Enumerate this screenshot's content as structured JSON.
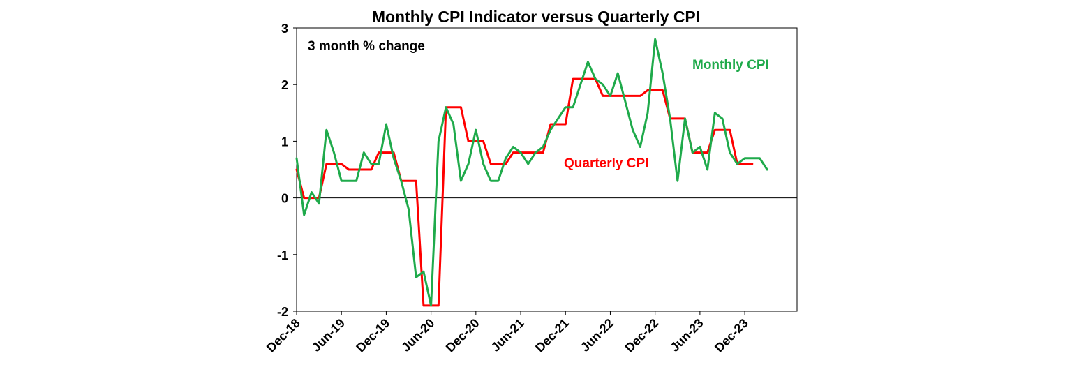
{
  "chart_data": {
    "type": "line",
    "title": "Monthly CPI Indicator versus Quarterly CPI",
    "annotation": "3 month % change",
    "x_ticks": [
      "Dec-18",
      "Jun-19",
      "Dec-19",
      "Jun-20",
      "Dec-20",
      "Jun-21",
      "Dec-21",
      "Jun-22",
      "Dec-22",
      "Jun-23",
      "Dec-23"
    ],
    "y_ticks": [
      "3",
      "2",
      "1",
      "0",
      "-1",
      "-2"
    ],
    "ylim": [
      -2,
      3
    ],
    "xlim": [
      "Dec-18",
      "Jul-24"
    ],
    "grid": false,
    "legend": "inline labels",
    "series": [
      {
        "name": "Monthly CPI",
        "color": "#1FAA4B",
        "points": [
          [
            "Dec-18",
            0.7
          ],
          [
            "Jan-19",
            -0.3
          ],
          [
            "Feb-19",
            0.1
          ],
          [
            "Mar-19",
            -0.1
          ],
          [
            "Apr-19",
            1.2
          ],
          [
            "May-19",
            0.8
          ],
          [
            "Jun-19",
            0.3
          ],
          [
            "Jul-19",
            0.3
          ],
          [
            "Aug-19",
            0.3
          ],
          [
            "Sep-19",
            0.8
          ],
          [
            "Oct-19",
            0.6
          ],
          [
            "Nov-19",
            0.6
          ],
          [
            "Dec-19",
            1.3
          ],
          [
            "Jan-20",
            0.7
          ],
          [
            "Feb-20",
            0.3
          ],
          [
            "Mar-20",
            -0.2
          ],
          [
            "Apr-20",
            -1.4
          ],
          [
            "May-20",
            -1.3
          ],
          [
            "Jun-20",
            -1.9
          ],
          [
            "Jul-20",
            1.0
          ],
          [
            "Aug-20",
            1.6
          ],
          [
            "Sep-20",
            1.3
          ],
          [
            "Oct-20",
            0.3
          ],
          [
            "Nov-20",
            0.6
          ],
          [
            "Dec-20",
            1.2
          ],
          [
            "Jan-21",
            0.6
          ],
          [
            "Feb-21",
            0.3
          ],
          [
            "Mar-21",
            0.3
          ],
          [
            "Apr-21",
            0.7
          ],
          [
            "May-21",
            0.9
          ],
          [
            "Jun-21",
            0.8
          ],
          [
            "Jul-21",
            0.6
          ],
          [
            "Aug-21",
            0.8
          ],
          [
            "Sep-21",
            0.9
          ],
          [
            "Oct-21",
            1.2
          ],
          [
            "Nov-21",
            1.4
          ],
          [
            "Dec-21",
            1.6
          ],
          [
            "Jan-22",
            1.6
          ],
          [
            "Feb-22",
            2.0
          ],
          [
            "Mar-22",
            2.4
          ],
          [
            "Apr-22",
            2.1
          ],
          [
            "May-22",
            2.0
          ],
          [
            "Jun-22",
            1.8
          ],
          [
            "Jul-22",
            2.2
          ],
          [
            "Aug-22",
            1.7
          ],
          [
            "Sep-22",
            1.2
          ],
          [
            "Oct-22",
            0.9
          ],
          [
            "Nov-22",
            1.5
          ],
          [
            "Dec-22",
            2.8
          ],
          [
            "Jan-23",
            2.2
          ],
          [
            "Feb-23",
            1.4
          ],
          [
            "Mar-23",
            0.3
          ],
          [
            "Apr-23",
            1.4
          ],
          [
            "May-23",
            0.8
          ],
          [
            "Jun-23",
            0.9
          ],
          [
            "Jul-23",
            0.5
          ],
          [
            "Aug-23",
            1.5
          ],
          [
            "Sep-23",
            1.4
          ],
          [
            "Oct-23",
            0.8
          ],
          [
            "Nov-23",
            0.6
          ],
          [
            "Dec-23",
            0.7
          ],
          [
            "Jan-24",
            0.7
          ],
          [
            "Feb-24",
            0.7
          ],
          [
            "Mar-24",
            0.5
          ]
        ]
      },
      {
        "name": "Quarterly CPI",
        "color": "#FF0000",
        "points": [
          [
            "Dec-18",
            0.5
          ],
          [
            "Jan-19",
            0.0
          ],
          [
            "Feb-19",
            0.0
          ],
          [
            "Mar-19",
            0.0
          ],
          [
            "Apr-19",
            0.6
          ],
          [
            "May-19",
            0.6
          ],
          [
            "Jun-19",
            0.6
          ],
          [
            "Jul-19",
            0.5
          ],
          [
            "Aug-19",
            0.5
          ],
          [
            "Sep-19",
            0.5
          ],
          [
            "Oct-19",
            0.5
          ],
          [
            "Nov-19",
            0.8
          ],
          [
            "Dec-19",
            0.8
          ],
          [
            "Jan-20",
            0.8
          ],
          [
            "Feb-20",
            0.3
          ],
          [
            "Mar-20",
            0.3
          ],
          [
            "Apr-20",
            0.3
          ],
          [
            "May-20",
            -1.9
          ],
          [
            "Jun-20",
            -1.9
          ],
          [
            "Jul-20",
            -1.9
          ],
          [
            "Aug-20",
            1.6
          ],
          [
            "Sep-20",
            1.6
          ],
          [
            "Oct-20",
            1.6
          ],
          [
            "Nov-20",
            1.0
          ],
          [
            "Dec-20",
            1.0
          ],
          [
            "Jan-21",
            1.0
          ],
          [
            "Feb-21",
            0.6
          ],
          [
            "Mar-21",
            0.6
          ],
          [
            "Apr-21",
            0.6
          ],
          [
            "May-21",
            0.8
          ],
          [
            "Jun-21",
            0.8
          ],
          [
            "Jul-21",
            0.8
          ],
          [
            "Aug-21",
            0.8
          ],
          [
            "Sep-21",
            0.8
          ],
          [
            "Oct-21",
            1.3
          ],
          [
            "Nov-21",
            1.3
          ],
          [
            "Dec-21",
            1.3
          ],
          [
            "Jan-22",
            2.1
          ],
          [
            "Feb-22",
            2.1
          ],
          [
            "Mar-22",
            2.1
          ],
          [
            "Apr-22",
            2.1
          ],
          [
            "May-22",
            1.8
          ],
          [
            "Jun-22",
            1.8
          ],
          [
            "Jul-22",
            1.8
          ],
          [
            "Aug-22",
            1.8
          ],
          [
            "Sep-22",
            1.8
          ],
          [
            "Oct-22",
            1.8
          ],
          [
            "Nov-22",
            1.9
          ],
          [
            "Dec-22",
            1.9
          ],
          [
            "Jan-23",
            1.9
          ],
          [
            "Feb-23",
            1.4
          ],
          [
            "Mar-23",
            1.4
          ],
          [
            "Apr-23",
            1.4
          ],
          [
            "May-23",
            0.8
          ],
          [
            "Jun-23",
            0.8
          ],
          [
            "Jul-23",
            0.8
          ],
          [
            "Aug-23",
            1.2
          ],
          [
            "Sep-23",
            1.2
          ],
          [
            "Oct-23",
            1.2
          ],
          [
            "Nov-23",
            0.6
          ],
          [
            "Dec-23",
            0.6
          ],
          [
            "Jan-24",
            0.6
          ]
        ]
      }
    ]
  }
}
